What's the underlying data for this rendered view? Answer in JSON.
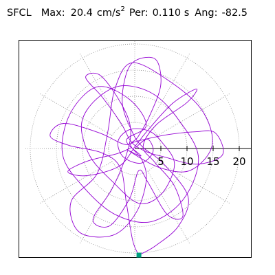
{
  "header": {
    "station": "SFCL",
    "max_label": "Max:",
    "max_value": "20.4",
    "max_unit_base": "cm/s",
    "max_unit_exp": "2",
    "per_label": "Per:",
    "per_value": "0.110 s",
    "ang_label": "Ang:",
    "ang_value": "-82.5"
  },
  "chart_data": {
    "type": "scatter",
    "plot_kind": "polar particle-motion trace",
    "radial_ticks": [
      "5",
      "10",
      "15",
      "20"
    ],
    "radial_max": 22,
    "grid": "dotted",
    "trace_color": "#9400d3",
    "marker_color": "#00a080",
    "marker": {
      "x": 0.8,
      "y": -20.4
    },
    "trace": [
      [
        0,
        0
      ],
      [
        2.4,
        1.8
      ],
      [
        3.5,
        -0.6
      ],
      [
        1.2,
        -2.8
      ],
      [
        -2.2,
        -1.6
      ],
      [
        -3.2,
        1.4
      ],
      [
        -1.0,
        3.6
      ],
      [
        2.6,
        3.4
      ],
      [
        5.2,
        1.2
      ],
      [
        7.6,
        -3.0
      ],
      [
        5.2,
        -8.6
      ],
      [
        0.8,
        -10.5
      ],
      [
        -4.4,
        -6.2
      ],
      [
        -8.6,
        -1.4
      ],
      [
        -10.2,
        4.6
      ],
      [
        -7.6,
        9.2
      ],
      [
        -2.6,
        12.0
      ],
      [
        3.6,
        10.4
      ],
      [
        8.6,
        5.2
      ],
      [
        12.2,
        -1.8
      ],
      [
        9.4,
        -9.6
      ],
      [
        3.2,
        -14.0
      ],
      [
        -3.8,
        -12.6
      ],
      [
        -9.8,
        -7.4
      ],
      [
        -13.8,
        -1.2
      ],
      [
        -12.4,
        6.6
      ],
      [
        -7.2,
        11.8
      ],
      [
        -1.0,
        9.4
      ],
      [
        2.2,
        4.4
      ],
      [
        -1.6,
        1.6
      ],
      [
        1.2,
        -1.4
      ],
      [
        -1.2,
        -0.4
      ],
      [
        4.6,
        -3.6
      ],
      [
        10.6,
        -4.2
      ],
      [
        14.8,
        0.6
      ],
      [
        12.8,
        7.4
      ],
      [
        6.2,
        13.2
      ],
      [
        -0.6,
        16.4
      ],
      [
        -3.8,
        11.4
      ],
      [
        -5.2,
        3.0
      ],
      [
        -7.2,
        -4.8
      ],
      [
        -12.2,
        -10.2
      ],
      [
        -10.6,
        -16.0
      ],
      [
        -4.2,
        -16.6
      ],
      [
        0.2,
        -12.4
      ],
      [
        2.2,
        -6.2
      ],
      [
        1.4,
        -2.2
      ],
      [
        -0.8,
        0.6
      ],
      [
        0.6,
        2.2
      ],
      [
        3.0,
        6.6
      ],
      [
        5.0,
        12.4
      ],
      [
        3.8,
        17.2
      ],
      [
        -0.8,
        16.0
      ],
      [
        -2.4,
        9.0
      ],
      [
        -0.4,
        3.0
      ],
      [
        1.6,
        0.2
      ],
      [
        5.4,
        -2.8
      ],
      [
        10.2,
        -9.2
      ],
      [
        8.4,
        -14.8
      ],
      [
        4.0,
        -18.6
      ],
      [
        1.2,
        -20.2
      ],
      [
        0.8,
        -20.4
      ],
      [
        -0.4,
        -17.6
      ],
      [
        -1.6,
        -10.4
      ],
      [
        -2.8,
        -3.6
      ],
      [
        -6.4,
        -0.8
      ],
      [
        -12.6,
        0.6
      ],
      [
        -16.2,
        2.4
      ],
      [
        -13.6,
        4.8
      ],
      [
        -6.8,
        3.0
      ],
      [
        -2.0,
        0.8
      ],
      [
        0.4,
        1.4
      ],
      [
        6.0,
        2.6
      ],
      [
        11.6,
        3.2
      ],
      [
        15.4,
        3.0
      ],
      [
        16.8,
        -1.2
      ],
      [
        11.8,
        -3.0
      ],
      [
        5.6,
        -1.6
      ],
      [
        2.2,
        -0.6
      ],
      [
        -0.6,
        1.2
      ],
      [
        -2.6,
        4.8
      ],
      [
        -6.2,
        9.8
      ],
      [
        -9.4,
        13.6
      ],
      [
        -6.6,
        14.0
      ],
      [
        -2.6,
        8.6
      ],
      [
        -0.8,
        3.8
      ],
      [
        -1.6,
        -1.2
      ],
      [
        -4.4,
        -7.8
      ],
      [
        -8.0,
        -13.6
      ],
      [
        -4.8,
        -14.8
      ],
      [
        -1.0,
        -9.6
      ],
      [
        0.8,
        -4.2
      ],
      [
        2.6,
        -6.6
      ],
      [
        6.2,
        -12.6
      ],
      [
        9.2,
        -13.0
      ],
      [
        7.6,
        -7.2
      ],
      [
        3.8,
        -2.6
      ],
      [
        1.6,
        0.4
      ],
      [
        4.2,
        4.6
      ],
      [
        10.0,
        8.8
      ],
      [
        11.8,
        11.4
      ],
      [
        7.2,
        8.6
      ],
      [
        2.6,
        3.6
      ],
      [
        0.2,
        0.6
      ],
      [
        -3.0,
        -3.4
      ],
      [
        -9.2,
        -5.2
      ],
      [
        -12.8,
        -4.4
      ],
      [
        -9.0,
        -2.4
      ],
      [
        -3.4,
        -1.0
      ],
      [
        -0.6,
        0.2
      ]
    ]
  }
}
